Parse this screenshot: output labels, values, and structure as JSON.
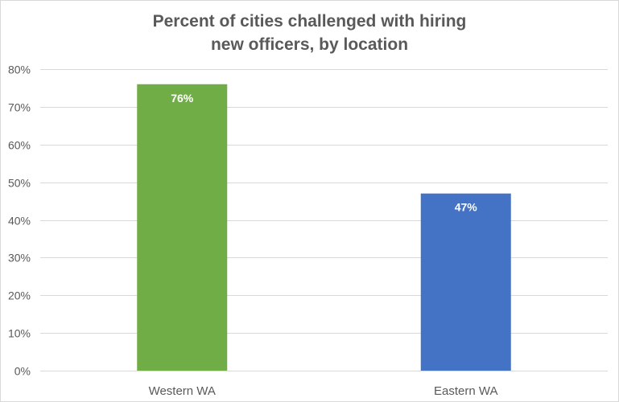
{
  "chart_data": {
    "type": "bar",
    "title_lines": [
      "Percent of cities challenged with hiring",
      "new officers, by location"
    ],
    "categories": [
      "Western WA",
      "Eastern WA"
    ],
    "values": [
      76,
      47
    ],
    "data_labels": [
      "76%",
      "47%"
    ],
    "bar_colors": [
      "#70ad47",
      "#4472c4"
    ],
    "ylim": [
      0,
      80
    ],
    "yticks": [
      0,
      10,
      20,
      30,
      40,
      50,
      60,
      70,
      80
    ],
    "ytick_labels": [
      "0%",
      "10%",
      "20%",
      "30%",
      "40%",
      "50%",
      "60%",
      "70%",
      "80%"
    ],
    "xlabel": "",
    "ylabel": "",
    "grid": true,
    "legend": "none"
  }
}
